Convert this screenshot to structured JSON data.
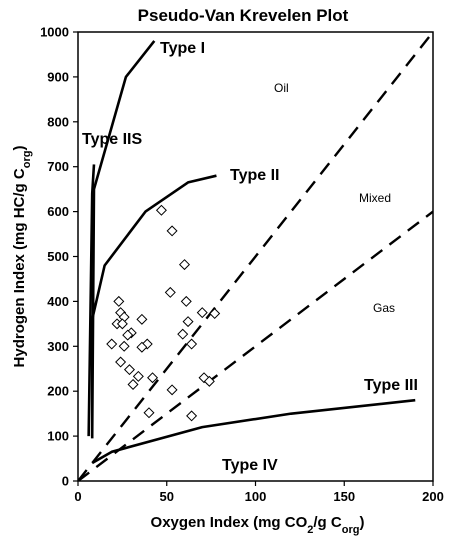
{
  "chart_data": {
    "type": "scatter",
    "title": "Pseudo-Van Krevelen Plot",
    "xlabel_parts": [
      "Oxygen Index (mg CO",
      "2",
      "/g C",
      "org",
      ")"
    ],
    "ylabel_parts": [
      "Hydrogen Index (mg HC/g C",
      "org",
      ")"
    ],
    "xlim": [
      0,
      200
    ],
    "ylim": [
      0,
      1000
    ],
    "xticks": [
      "0",
      "50",
      "100",
      "150",
      "200"
    ],
    "yticks": [
      "0",
      "100",
      "200",
      "300",
      "400",
      "500",
      "600",
      "700",
      "800",
      "900",
      "1000"
    ],
    "kerogen_curves": [
      {
        "name": "Type I",
        "points": [
          [
            8,
            100
          ],
          [
            9,
            650
          ],
          [
            27,
            900
          ],
          [
            43,
            980
          ]
        ]
      },
      {
        "name": "Type IIS",
        "points": [
          [
            6,
            100
          ],
          [
            8,
            640
          ],
          [
            9,
            705
          ]
        ]
      },
      {
        "name": "Type II",
        "points": [
          [
            8,
            95
          ],
          [
            8,
            360
          ],
          [
            15,
            480
          ],
          [
            38,
            600
          ],
          [
            62,
            665
          ],
          [
            78,
            680
          ]
        ]
      },
      {
        "name": "Type III",
        "points": [
          [
            8,
            40
          ],
          [
            19,
            65
          ],
          [
            70,
            120
          ],
          [
            120,
            150
          ],
          [
            190,
            180
          ]
        ]
      }
    ],
    "boundary_lines": [
      {
        "points": [
          [
            0,
            0
          ],
          [
            200,
            1000
          ]
        ]
      },
      {
        "points": [
          [
            0,
            0
          ],
          [
            200,
            600
          ]
        ]
      }
    ],
    "labels": {
      "type_i": "Type I",
      "type_iis": "Type IIS",
      "type_ii": "Type II",
      "type_iii": "Type III",
      "type_iv": "Type IV",
      "oil": "Oil",
      "mixed": "Mixed",
      "gas": "Gas"
    },
    "samples": [
      [
        47,
        603
      ],
      [
        53,
        557
      ],
      [
        60,
        482
      ],
      [
        52,
        420
      ],
      [
        61,
        400
      ],
      [
        70,
        375
      ],
      [
        77,
        373
      ],
      [
        23,
        400
      ],
      [
        24,
        375
      ],
      [
        26,
        365
      ],
      [
        22,
        350
      ],
      [
        25,
        350
      ],
      [
        36,
        360
      ],
      [
        30,
        330
      ],
      [
        28,
        325
      ],
      [
        62,
        355
      ],
      [
        59,
        327
      ],
      [
        64,
        305
      ],
      [
        19,
        305
      ],
      [
        26,
        300
      ],
      [
        39,
        305
      ],
      [
        36,
        298
      ],
      [
        24,
        265
      ],
      [
        29,
        248
      ],
      [
        34,
        233
      ],
      [
        42,
        230
      ],
      [
        31,
        215
      ],
      [
        53,
        203
      ],
      [
        71,
        230
      ],
      [
        74,
        222
      ],
      [
        40,
        152
      ],
      [
        64,
        145
      ]
    ]
  }
}
